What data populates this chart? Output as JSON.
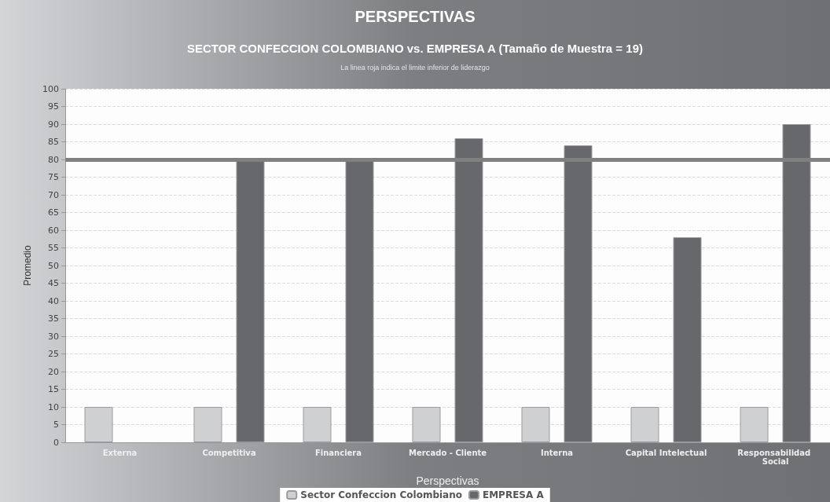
{
  "chart_data": {
    "type": "bar",
    "title": "PERSPECTIVAS",
    "subtitle": "SECTOR CONFECCION COLOMBIANO vs. EMPRESA A (Tamaño de Muestra = 19)",
    "annotations": [
      "La linea roja indica el limite inferior de liderazgo"
    ],
    "xlabel": "Perspectivas",
    "ylabel": "Promedio",
    "categories": [
      "Externa",
      "Competitiva",
      "Financiera",
      "Mercado - Cliente",
      "Interna",
      "Capital Intelectual",
      "Responsabilidad Social"
    ],
    "series": [
      {
        "name": "Sector Confeccion Colombiano",
        "color": "#cfd0d2",
        "values": [
          10,
          10,
          10,
          10,
          10,
          10,
          10
        ]
      },
      {
        "name": "EMPRESA A",
        "color": "#67686c",
        "values": [
          null,
          80,
          80,
          86,
          84,
          58,
          90
        ]
      }
    ],
    "ylim": [
      0,
      100
    ],
    "yticks": [
      0,
      5,
      10,
      15,
      20,
      25,
      30,
      35,
      40,
      45,
      50,
      55,
      60,
      65,
      70,
      75,
      80,
      85,
      90,
      95,
      100
    ],
    "ref_lines": [
      {
        "axis": "y",
        "value": 80,
        "color": "#808080"
      }
    ],
    "grid": "y",
    "legend": "bottom"
  }
}
